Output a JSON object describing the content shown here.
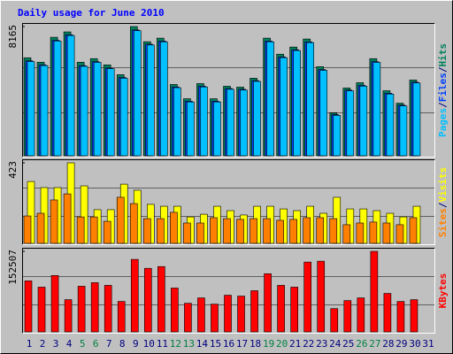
{
  "title": "Daily usage for June 2010",
  "separator": "/",
  "chart_data": [
    {
      "type": "bar",
      "categories": [
        "1",
        "2",
        "3",
        "4",
        "5",
        "6",
        "7",
        "8",
        "9",
        "10",
        "11",
        "12",
        "13",
        "14",
        "15",
        "16",
        "17",
        "18",
        "19",
        "20",
        "21",
        "22",
        "23",
        "24",
        "25",
        "26",
        "27",
        "28",
        "29",
        "30",
        "31"
      ],
      "category_colors": [
        "#000080",
        "#000080",
        "#000080",
        "#000080",
        "#008040",
        "#008040",
        "#000080",
        "#000080",
        "#000080",
        "#000080",
        "#000080",
        "#008040",
        "#008040",
        "#000080",
        "#000080",
        "#000080",
        "#000080",
        "#000080",
        "#008040",
        "#008040",
        "#000080",
        "#000080",
        "#000080",
        "#000080",
        "#000080",
        "#008040",
        "#008040",
        "#000080",
        "#000080",
        "#000080",
        "#000080"
      ],
      "ylim": [
        0,
        8165
      ],
      "yticks": [
        8165
      ],
      "series": [
        {
          "name": "Hits",
          "color": "#00805c",
          "values": [
            6194,
            5912,
            7489,
            7827,
            5912,
            6138,
            5744,
            5124,
            8165,
            7208,
            7433,
            4505,
            3604,
            4561,
            3604,
            4392,
            4336,
            4899,
            7433,
            6419,
            6870,
            7377,
            5631,
            2703,
            4280,
            4617,
            6138,
            4111,
            3322,
            4786,
            null
          ]
        },
        {
          "name": "Files",
          "color": "#0040ff",
          "values": [
            6000,
            5750,
            7300,
            7650,
            5700,
            5950,
            5550,
            4950,
            7950,
            7050,
            7250,
            4350,
            3450,
            4400,
            3450,
            4250,
            4200,
            4750,
            7250,
            6250,
            6700,
            7200,
            5450,
            2600,
            4150,
            4450,
            5950,
            3950,
            3200,
            4650,
            null
          ]
        },
        {
          "name": "Pages",
          "color": "#00c0ff",
          "values": [
            5950,
            5700,
            7250,
            7600,
            5650,
            5900,
            5500,
            4900,
            7900,
            7000,
            7200,
            4300,
            3400,
            4350,
            3400,
            4200,
            4150,
            4700,
            7200,
            6200,
            6650,
            7150,
            5400,
            2550,
            4100,
            4400,
            5900,
            3900,
            3150,
            4600,
            null
          ]
        }
      ]
    },
    {
      "type": "bar",
      "ylim": [
        0,
        423
      ],
      "yticks": [
        423
      ],
      "series": [
        {
          "name": "Visits",
          "color": "#ffff00",
          "values": [
            325,
            293,
            293,
            423,
            302,
            177,
            177,
            311,
            279,
            205,
            195,
            195,
            139,
            153,
            195,
            172,
            149,
            195,
            195,
            181,
            172,
            195,
            158,
            242,
            181,
            181,
            172,
            158,
            139,
            195,
            null
          ]
        },
        {
          "name": "Sites",
          "color": "#ff8000",
          "values": [
            144,
            158,
            228,
            260,
            139,
            139,
            116,
            242,
            209,
            130,
            130,
            163,
            107,
            107,
            135,
            130,
            126,
            130,
            130,
            121,
            126,
            135,
            135,
            130,
            98,
            107,
            112,
            107,
            98,
            135,
            null
          ]
        }
      ]
    },
    {
      "type": "bar",
      "ylim": [
        0,
        152507
      ],
      "yticks": [
        152507
      ],
      "series": [
        {
          "name": "KBytes",
          "color": "#ff0000",
          "values": [
            96588,
            84727,
            106754,
            61002,
            86421,
            93199,
            88115,
            57613,
            137256,
            120311,
            123700,
            83032,
            54225,
            64392,
            52530,
            69475,
            67781,
            77948,
            110143,
            88115,
            84727,
            132172,
            133867,
            44057,
            59308,
            64392,
            152507,
            72864,
            57613,
            61002,
            null
          ]
        }
      ]
    }
  ]
}
